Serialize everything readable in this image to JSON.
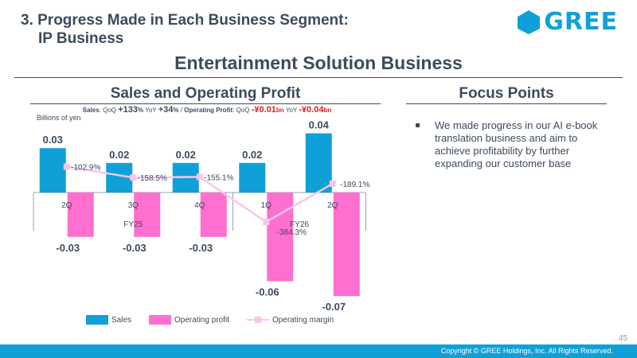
{
  "header": {
    "title_line1": "3. Progress Made in Each Business Segment:",
    "title_line2": "IP Business",
    "logo_text": "GREE"
  },
  "page_title": "Entertainment Solution Business",
  "left_section": {
    "heading": "Sales and Operating Profit",
    "summary": {
      "sales_label": "Sales",
      "qoq_label": "QoQ",
      "sales_qoq": "+133",
      "yoy_label": "YoY",
      "sales_yoy": "+34",
      "pct": "%",
      "sep": "/",
      "op_label": "Operating Profit",
      "op_qoq": "-¥0.01",
      "op_yoy": "-¥0.04",
      "bn": "bn"
    },
    "unit": "Billions of yen"
  },
  "right_section": {
    "heading": "Focus Points",
    "bullets": [
      "We made progress in our AI e-book translation business and aim to achieve profitability by further expanding our customer base"
    ]
  },
  "page_number": "45",
  "copyright": "Copyright © GREE Holdings, Inc. All Rights Reserved.",
  "colors": {
    "sales": "#0fa0d8",
    "operating_profit": "#ff6fcf",
    "operating_margin": "#f9c5ec",
    "text": "#3d4a5c",
    "brand": "#0fa0d8"
  },
  "chart_data": {
    "type": "bar",
    "categories": [
      "2Q",
      "3Q",
      "4Q",
      "1Q",
      "2Q"
    ],
    "fiscal_groups": [
      {
        "label": "FY25",
        "categories": [
          "2Q",
          "3Q",
          "4Q"
        ]
      },
      {
        "label": "FY26",
        "categories": [
          "1Q",
          "2Q"
        ]
      }
    ],
    "series": [
      {
        "name": "Sales",
        "values": [
          0.03,
          0.02,
          0.02,
          0.02,
          0.04
        ],
        "labels": [
          "0.03",
          "0.02",
          "0.02",
          "0.02",
          "0.04"
        ]
      },
      {
        "name": "Operating profit",
        "values": [
          -0.03,
          -0.03,
          -0.03,
          -0.06,
          -0.07
        ],
        "labels": [
          "-0.03",
          "-0.03",
          "-0.03",
          "-0.06",
          "-0.07"
        ]
      },
      {
        "name": "Operating margin",
        "type": "line",
        "values": [
          -102.9,
          -158.5,
          -155.1,
          -384.3,
          -189.1
        ],
        "labels": [
          "-102.9%",
          "-158.5%",
          "-155.1%",
          "-384.3%",
          "-189.1%"
        ]
      }
    ],
    "legend": [
      "Sales",
      "Operating profit",
      "Operating margin"
    ],
    "legend_position": "bottom"
  }
}
